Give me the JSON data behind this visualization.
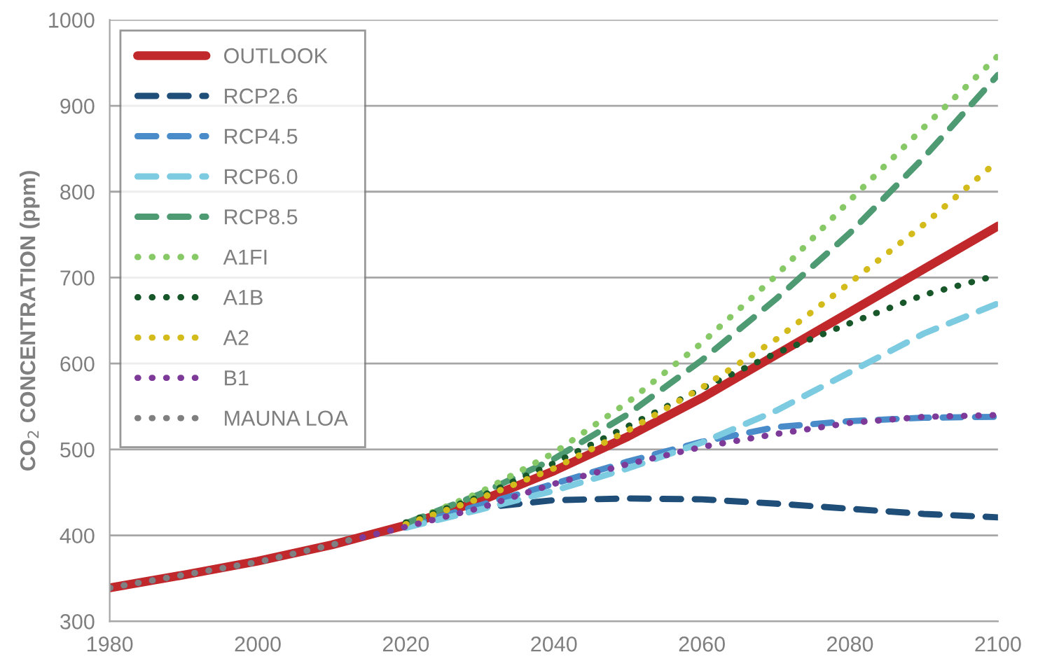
{
  "chart_data": {
    "type": "line",
    "ylabel": "CO$_{2}$ CONCENTRATION (ppm)",
    "x": [
      1980,
      1990,
      2000,
      2010,
      2020,
      2030,
      2040,
      2050,
      2060,
      2070,
      2080,
      2090,
      2100
    ],
    "xlim": [
      1980,
      2100
    ],
    "xticks": [
      1980,
      2000,
      2020,
      2040,
      2060,
      2080,
      2100
    ],
    "ylim": [
      300,
      1000
    ],
    "yticks": [
      300,
      400,
      500,
      600,
      700,
      800,
      900,
      1000
    ],
    "grid": "y",
    "legend": "top left",
    "series": [
      {
        "name": "OUTLOOK",
        "color": "#c0282b",
        "line_style": "solid",
        "values": [
          339,
          354,
          370,
          389,
          412,
          440,
          475,
          515,
          560,
          610,
          660,
          710,
          760
        ]
      },
      {
        "name": "RCP2.6",
        "color": "#1f4e79",
        "line_style": "dashed",
        "x": [
          2020,
          2030,
          2040,
          2050,
          2060,
          2070,
          2080,
          2090,
          2100
        ],
        "values": [
          412,
          432,
          441,
          443,
          442,
          437,
          431,
          425,
          421
        ]
      },
      {
        "name": "RCP4.5",
        "color": "#4a8cc9",
        "line_style": "dashed",
        "x": [
          2020,
          2030,
          2040,
          2050,
          2060,
          2070,
          2080,
          2090,
          2100
        ],
        "values": [
          411,
          435,
          460,
          486,
          509,
          526,
          533,
          537,
          538
        ]
      },
      {
        "name": "RCP6.0",
        "color": "#7ccbe0",
        "line_style": "dashed",
        "x": [
          2020,
          2030,
          2040,
          2050,
          2060,
          2070,
          2080,
          2090,
          2100
        ],
        "values": [
          409,
          430,
          452,
          478,
          508,
          545,
          590,
          635,
          670
        ]
      },
      {
        "name": "RCP8.5",
        "color": "#4e9a72",
        "line_style": "dashed",
        "x": [
          2020,
          2030,
          2040,
          2050,
          2060,
          2070,
          2080,
          2090,
          2100
        ],
        "values": [
          414,
          448,
          489,
          541,
          604,
          675,
          752,
          840,
          936
        ]
      },
      {
        "name": "A1FI",
        "color": "#86c966",
        "line_style": "dotted",
        "x": [
          2020,
          2030,
          2040,
          2050,
          2060,
          2070,
          2080,
          2090,
          2100
        ],
        "values": [
          414,
          450,
          496,
          555,
          624,
          702,
          790,
          875,
          958
        ]
      },
      {
        "name": "A1B",
        "color": "#17572a",
        "line_style": "dotted",
        "x": [
          2020,
          2030,
          2040,
          2050,
          2060,
          2070,
          2080,
          2090,
          2100
        ],
        "values": [
          415,
          445,
          484,
          527,
          571,
          612,
          647,
          680,
          703
        ]
      },
      {
        "name": "A2",
        "color": "#d4bb1c",
        "line_style": "dotted",
        "x": [
          2020,
          2030,
          2040,
          2050,
          2060,
          2070,
          2080,
          2090,
          2100
        ],
        "values": [
          413,
          443,
          478,
          522,
          572,
          628,
          694,
          762,
          836
        ]
      },
      {
        "name": "B1",
        "color": "#7d3a98",
        "line_style": "dotted",
        "values": [
          339,
          354,
          369,
          389,
          410,
          432,
          460,
          483,
          503,
          518,
          531,
          538,
          540
        ]
      },
      {
        "name": "MAUNA LOA",
        "color": "#808080",
        "line_style": "dotted",
        "x": [
          1980,
          1990,
          2000,
          2010,
          2013
        ],
        "values": [
          339,
          354,
          369,
          389,
          396
        ]
      }
    ]
  }
}
